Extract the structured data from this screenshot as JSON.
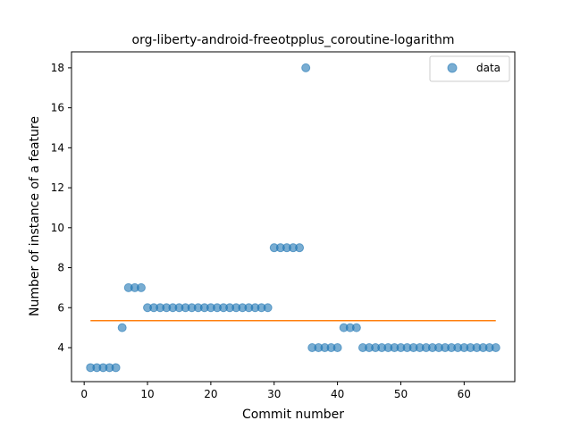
{
  "chart_data": {
    "type": "scatter",
    "title": "org-liberty-android-freeotpplus_coroutine-logarithm",
    "xlabel": "Commit number",
    "ylabel": "Number of instance of a feature",
    "xlim": [
      -2,
      68
    ],
    "ylim": [
      2.3,
      18.8
    ],
    "xticks": [
      0,
      10,
      20,
      30,
      40,
      50,
      60
    ],
    "yticks": [
      4,
      6,
      8,
      10,
      12,
      14,
      16,
      18
    ],
    "grid": false,
    "legend": {
      "placement": "top-right",
      "entries": [
        "data"
      ]
    },
    "series": [
      {
        "name": "data",
        "kind": "scatter",
        "color": "#1f77b4",
        "x": [
          1,
          2,
          3,
          4,
          5,
          6,
          7,
          8,
          9,
          10,
          11,
          12,
          13,
          14,
          15,
          16,
          17,
          18,
          19,
          20,
          21,
          22,
          23,
          24,
          25,
          26,
          27,
          28,
          29,
          30,
          31,
          32,
          33,
          34,
          35,
          36,
          37,
          38,
          39,
          40,
          41,
          42,
          43,
          44,
          45,
          46,
          47,
          48,
          49,
          50,
          51,
          52,
          53,
          54,
          55,
          56,
          57,
          58,
          59,
          60,
          61,
          62,
          63,
          64,
          65
        ],
        "y": [
          3,
          3,
          3,
          3,
          3,
          5,
          7,
          7,
          7,
          6,
          6,
          6,
          6,
          6,
          6,
          6,
          6,
          6,
          6,
          6,
          6,
          6,
          6,
          6,
          6,
          6,
          6,
          6,
          6,
          9,
          9,
          9,
          9,
          9,
          18,
          4,
          4,
          4,
          4,
          4,
          5,
          5,
          5,
          4,
          4,
          4,
          4,
          4,
          4,
          4,
          4,
          4,
          4,
          4,
          4,
          4,
          4,
          4,
          4,
          4,
          4,
          4,
          4,
          4,
          4
        ]
      },
      {
        "kind": "line",
        "color": "#ff7f0e",
        "x": [
          1,
          65
        ],
        "y": [
          5.35,
          5.35
        ]
      }
    ]
  }
}
